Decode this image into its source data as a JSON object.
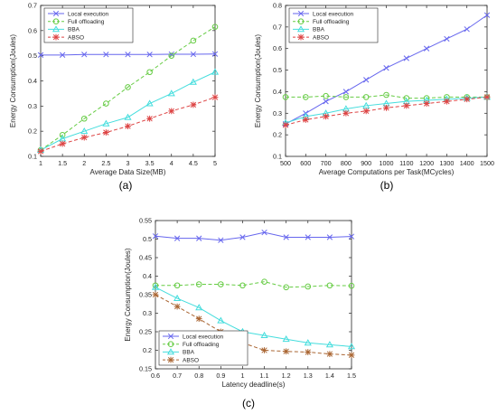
{
  "chart_data": [
    {
      "type": "line",
      "caption": "(a)",
      "xlabel": "Average Data Size(MB)",
      "ylabel": "Energy Consumption(Joules)",
      "xlim": [
        1,
        5
      ],
      "ylim": [
        0.1,
        0.7
      ],
      "xticks": [
        "1",
        "1.5",
        "2",
        "2.5",
        "3",
        "3.5",
        "4",
        "4.5",
        "5"
      ],
      "yticks": [
        "0.1",
        "0.2",
        "0.3",
        "0.4",
        "0.5",
        "0.6",
        "0.7"
      ],
      "x": [
        1,
        1.5,
        2,
        2.5,
        3,
        3.5,
        4,
        4.5,
        5
      ],
      "legend": "top-left",
      "grid": false,
      "series": [
        {
          "name": "Local execution",
          "color": "#6666ee",
          "marker": "x",
          "dash": "solid",
          "values": [
            0.503,
            0.503,
            0.505,
            0.505,
            0.505,
            0.505,
            0.506,
            0.506,
            0.507
          ]
        },
        {
          "name": "Full offloading",
          "color": "#66cc44",
          "marker": "o",
          "dash": "dash",
          "values": [
            0.125,
            0.185,
            0.25,
            0.31,
            0.375,
            0.435,
            0.5,
            0.56,
            0.615
          ]
        },
        {
          "name": "BBA",
          "color": "#44dddd",
          "marker": "^",
          "dash": "solid",
          "values": [
            0.125,
            0.17,
            0.2,
            0.23,
            0.255,
            0.31,
            0.35,
            0.395,
            0.435
          ]
        },
        {
          "name": "ABSO",
          "color": "#dd4444",
          "marker": "*",
          "dash": "dash",
          "values": [
            0.12,
            0.15,
            0.175,
            0.195,
            0.22,
            0.25,
            0.28,
            0.305,
            0.335
          ]
        }
      ]
    },
    {
      "type": "line",
      "caption": "(b)",
      "xlabel": "Average Computations per Task(MCycles)",
      "ylabel": "Energy Consumption(Joules)",
      "xlim": [
        500,
        1500
      ],
      "ylim": [
        0.1,
        0.8
      ],
      "xticks": [
        "500",
        "600",
        "700",
        "800",
        "900",
        "1000",
        "1100",
        "1200",
        "1300",
        "1400",
        "1500"
      ],
      "yticks": [
        "0.1",
        "0.2",
        "0.3",
        "0.4",
        "0.5",
        "0.6",
        "0.7",
        "0.8"
      ],
      "x": [
        500,
        600,
        700,
        800,
        900,
        1000,
        1100,
        1200,
        1300,
        1400,
        1500
      ],
      "legend": "top-left",
      "grid": false,
      "series": [
        {
          "name": "Local execution",
          "color": "#6666ee",
          "marker": "x",
          "dash": "solid",
          "values": [
            0.25,
            0.3,
            0.355,
            0.4,
            0.455,
            0.51,
            0.555,
            0.6,
            0.645,
            0.69,
            0.755
          ]
        },
        {
          "name": "Full offloading",
          "color": "#66cc44",
          "marker": "o",
          "dash": "dash",
          "values": [
            0.375,
            0.375,
            0.38,
            0.375,
            0.375,
            0.385,
            0.37,
            0.37,
            0.375,
            0.375,
            0.375
          ]
        },
        {
          "name": "BBA",
          "color": "#44dddd",
          "marker": "^",
          "dash": "solid",
          "values": [
            0.255,
            0.285,
            0.3,
            0.32,
            0.335,
            0.345,
            0.355,
            0.36,
            0.365,
            0.37,
            0.375
          ]
        },
        {
          "name": "ABSO",
          "color": "#dd4444",
          "marker": "*",
          "dash": "dash",
          "values": [
            0.245,
            0.27,
            0.285,
            0.3,
            0.31,
            0.325,
            0.335,
            0.345,
            0.355,
            0.365,
            0.375
          ]
        }
      ]
    },
    {
      "type": "line",
      "caption": "(c)",
      "xlabel": "Latency deadline(s)",
      "ylabel": "Energy Consumption(Joules)",
      "xlim": [
        0.6,
        1.5
      ],
      "ylim": [
        0.15,
        0.55
      ],
      "xticks": [
        "0.6",
        "0.7",
        "0.8",
        "0.9",
        "1",
        "1.1",
        "1.2",
        "1.3",
        "1.4",
        "1.5"
      ],
      "yticks": [
        "0.15",
        "0.2",
        "0.25",
        "0.3",
        "0.35",
        "0.4",
        "0.45",
        "0.5",
        "0.55"
      ],
      "x": [
        0.6,
        0.7,
        0.8,
        0.9,
        1.0,
        1.1,
        1.2,
        1.3,
        1.4,
        1.5
      ],
      "legend": "bottom-left",
      "grid": false,
      "series": [
        {
          "name": "Local execution",
          "color": "#6666ee",
          "marker": "x",
          "dash": "solid",
          "values": [
            0.508,
            0.502,
            0.502,
            0.497,
            0.505,
            0.518,
            0.505,
            0.505,
            0.505,
            0.507
          ]
        },
        {
          "name": "Full offloading",
          "color": "#66cc44",
          "marker": "o",
          "dash": "dash",
          "values": [
            0.375,
            0.375,
            0.378,
            0.378,
            0.375,
            0.385,
            0.37,
            0.372,
            0.375,
            0.374
          ]
        },
        {
          "name": "BBA",
          "color": "#44dddd",
          "marker": "^",
          "dash": "solid",
          "values": [
            0.37,
            0.34,
            0.315,
            0.28,
            0.25,
            0.24,
            0.23,
            0.22,
            0.215,
            0.21
          ]
        },
        {
          "name": "ABSO",
          "color": "#aa6633",
          "marker": "*",
          "dash": "dash",
          "values": [
            0.35,
            0.318,
            0.285,
            0.25,
            0.22,
            0.2,
            0.197,
            0.195,
            0.19,
            0.187
          ]
        }
      ]
    }
  ]
}
